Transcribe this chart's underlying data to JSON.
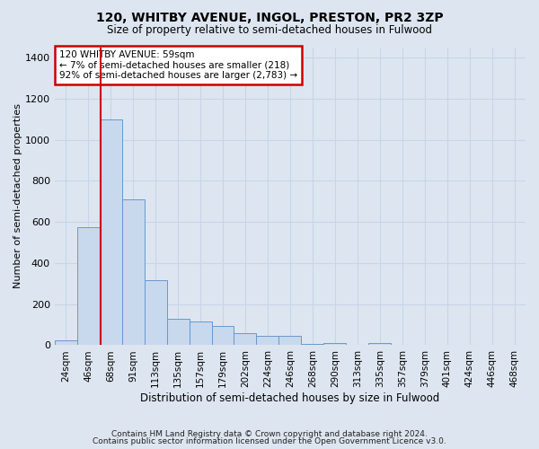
{
  "title1": "120, WHITBY AVENUE, INGOL, PRESTON, PR2 3ZP",
  "title2": "Size of property relative to semi-detached houses in Fulwood",
  "xlabel": "Distribution of semi-detached houses by size in Fulwood",
  "ylabel": "Number of semi-detached properties",
  "categories": [
    "24sqm",
    "46sqm",
    "68sqm",
    "91sqm",
    "113sqm",
    "135sqm",
    "157sqm",
    "179sqm",
    "202sqm",
    "224sqm",
    "246sqm",
    "268sqm",
    "290sqm",
    "313sqm",
    "335sqm",
    "357sqm",
    "379sqm",
    "401sqm",
    "424sqm",
    "446sqm",
    "468sqm"
  ],
  "values": [
    25,
    575,
    1100,
    710,
    315,
    130,
    115,
    95,
    60,
    45,
    45,
    5,
    12,
    3,
    12,
    0,
    0,
    0,
    0,
    0,
    3
  ],
  "bar_color": "#c8d8ed",
  "bar_edge_color": "#6699cc",
  "property_line_x": 1.55,
  "annotation_text": "120 WHITBY AVENUE: 59sqm\n← 7% of semi-detached houses are smaller (218)\n92% of semi-detached houses are larger (2,783) →",
  "annotation_box_color": "#ffffff",
  "annotation_box_edge": "#cc0000",
  "vline_color": "#cc0000",
  "ylim": [
    0,
    1450
  ],
  "yticks": [
    0,
    200,
    400,
    600,
    800,
    1000,
    1200,
    1400
  ],
  "grid_color": "#c8d4e8",
  "bg_color": "#dde6f0",
  "footer1": "Contains HM Land Registry data © Crown copyright and database right 2024.",
  "footer2": "Contains public sector information licensed under the Open Government Licence v3.0."
}
